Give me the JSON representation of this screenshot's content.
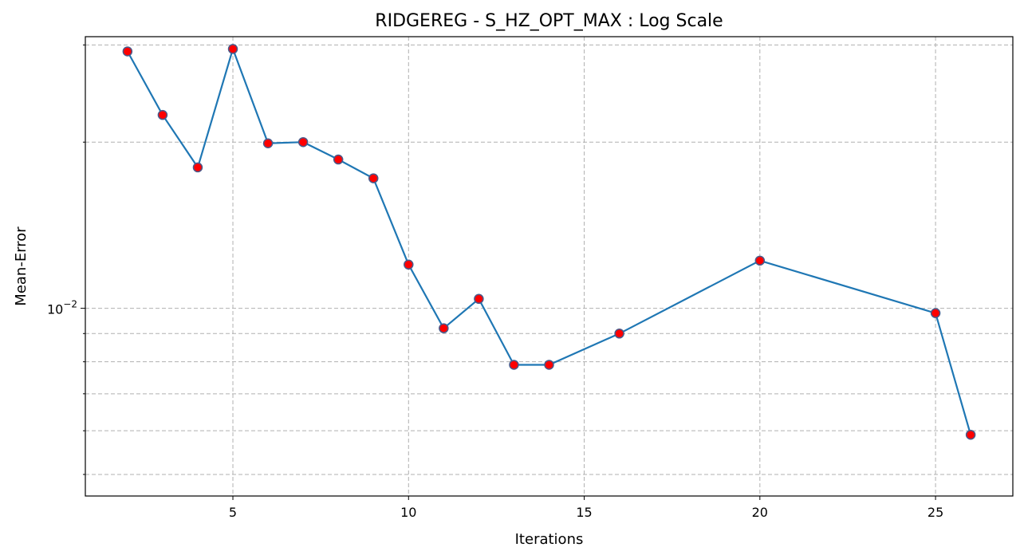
{
  "chart_data": {
    "type": "line",
    "title": "RIDGEREG - S_HZ_OPT_MAX : Log Scale",
    "xlabel": "Iterations",
    "ylabel": "Mean-Error",
    "yscale": "log",
    "grid": true,
    "xlim": [
      0.8,
      27.2
    ],
    "ylim": [
      0.00457,
      0.03105
    ],
    "x_ticks": [
      5,
      10,
      15,
      20,
      25
    ],
    "y_major_ticks": [
      {
        "value": 0.01,
        "label": "10",
        "exponent": "−2"
      }
    ],
    "y_minor_ticks": [
      0.005,
      0.006,
      0.007,
      0.008,
      0.009,
      0.02,
      0.03
    ],
    "line_color": "#1f77b4",
    "marker_face_color": "#ff0000",
    "marker_edge_color": "#4a5a8a",
    "series": [
      {
        "x": [
          2,
          3,
          4,
          5,
          6,
          7,
          8,
          9,
          10,
          11,
          12,
          13,
          14,
          16,
          20,
          25,
          26
        ],
        "y": [
          0.0292,
          0.0224,
          0.018,
          0.0295,
          0.0199,
          0.02,
          0.0186,
          0.0172,
          0.012,
          0.0092,
          0.0104,
          0.0079,
          0.0079,
          0.009,
          0.0122,
          0.0098,
          0.0059
        ]
      }
    ]
  }
}
